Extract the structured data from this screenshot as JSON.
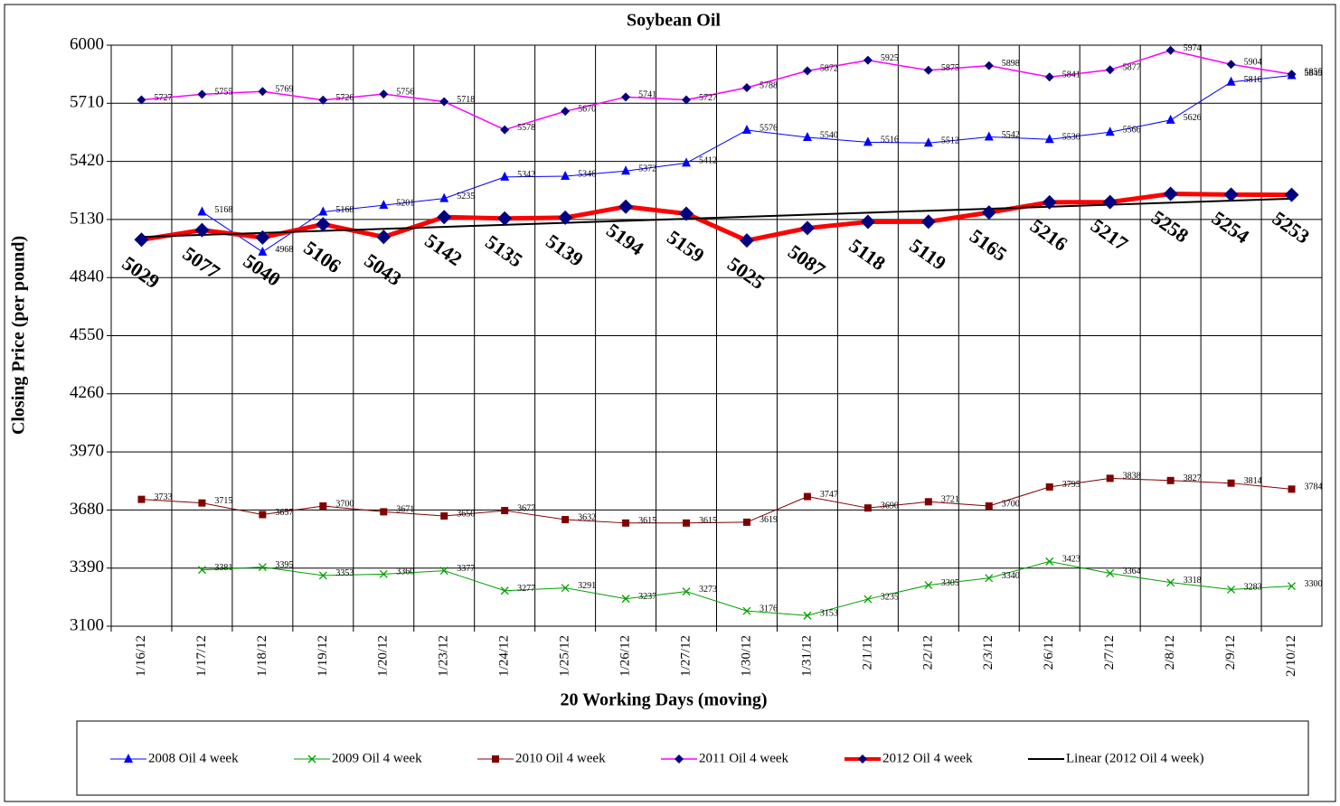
{
  "chart_data": {
    "type": "line",
    "title": "Soybean Oil",
    "x_label": "20 Working Days (moving)",
    "y_label": "Closing Price (per pound)",
    "categories": [
      "1/16/12",
      "1/17/12",
      "1/18/12",
      "1/19/12",
      "1/20/12",
      "1/23/12",
      "1/24/12",
      "1/25/12",
      "1/26/12",
      "1/27/12",
      "1/30/12",
      "1/31/12",
      "2/1/12",
      "2/2/12",
      "2/3/12",
      "2/6/12",
      "2/7/12",
      "2/8/12",
      "2/9/12",
      "2/10/12"
    ],
    "ylim": [
      3100,
      6000
    ],
    "yticks": [
      3100,
      3390,
      3680,
      3970,
      4260,
      4550,
      4840,
      5130,
      5420,
      5710,
      6000
    ],
    "grid": true,
    "series": [
      {
        "name": "2008 Oil 4 week",
        "color": "#0000ff",
        "marker": "triangle",
        "marker_color": "#0000ff",
        "line_width": 1,
        "values": [
          null,
          5168,
          4968,
          5168,
          5201,
          5235,
          5342,
          5346,
          5372,
          5412,
          5576,
          5540,
          5516,
          5512,
          5542,
          5530,
          5566,
          5626,
          5816,
          5849
        ]
      },
      {
        "name": "2009 Oil 4 week",
        "color": "#00a000",
        "marker": "x",
        "marker_color": "#00a000",
        "line_width": 1,
        "values": [
          null,
          3381,
          3395,
          3353,
          3360,
          3377,
          3277,
          3291,
          3237,
          3273,
          3176,
          3153,
          3235,
          3305,
          3340,
          3423,
          3364,
          3318,
          3283,
          3300
        ]
      },
      {
        "name": "2010 Oil 4 week",
        "color": "#800000",
        "marker": "square",
        "marker_color": "#800000",
        "line_width": 1,
        "values": [
          3733,
          3715,
          3657,
          3700,
          3671,
          3650,
          3677,
          3632,
          3615,
          3615,
          3619,
          3747,
          3690,
          3721,
          3700,
          3795,
          3838,
          3827,
          3814,
          3784
        ]
      },
      {
        "name": "2011 Oil 4 week",
        "color": "#ff00ff",
        "marker": "diamond",
        "marker_color": "#000080",
        "line_width": 1.5,
        "values": [
          5727,
          5755,
          5769,
          5726,
          5756,
          5718,
          5578,
          5670,
          5741,
          5727,
          5788,
          5872,
          5925,
          5875,
          5898,
          5841,
          5877,
          5974,
          5904,
          5855
        ]
      },
      {
        "name": "2012 Oil 4 week",
        "color": "#ff0000",
        "marker": "diamond",
        "marker_color": "#000080",
        "line_width": 5,
        "big_labels": true,
        "values": [
          5029,
          5077,
          5040,
          5106,
          5043,
          5142,
          5135,
          5139,
          5194,
          5159,
          5025,
          5087,
          5118,
          5119,
          5165,
          5216,
          5217,
          5258,
          5254,
          5253
        ]
      }
    ],
    "trend": {
      "name": "Linear (2012 Oil 4 week)",
      "color": "#000000",
      "values": [
        5043,
        5234
      ]
    }
  }
}
